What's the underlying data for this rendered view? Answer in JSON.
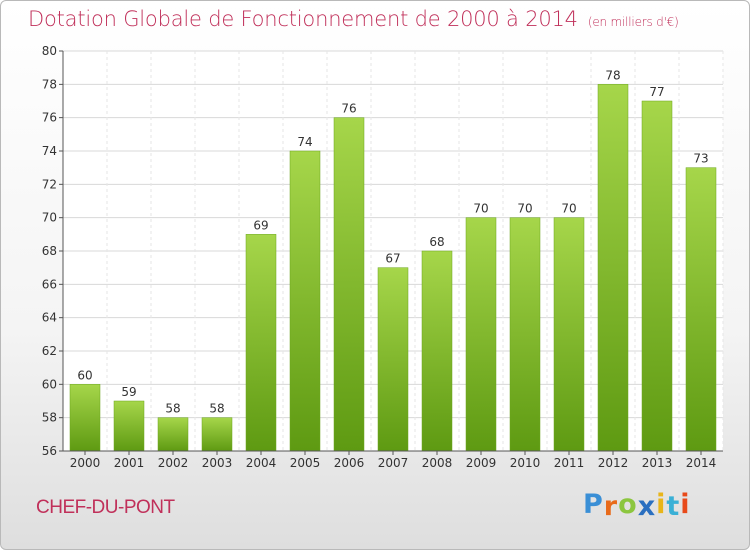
{
  "title": "Dotation Globale de Fonctionnement de 2000 à 2014",
  "subtitle": "(en milliers d'€)",
  "commune": "CHEF-DU-PONT",
  "logo": {
    "letters": [
      "P",
      "r",
      "o",
      "x",
      "i",
      "t",
      "i"
    ],
    "colors": [
      "#3a8fd6",
      "#e86a1a",
      "#8cc63f",
      "#2a6fc0",
      "#e8b51a",
      "#3ab0d6",
      "#e84a1a"
    ]
  },
  "colors": {
    "bar_top": "#a6d64a",
    "bar_bottom": "#5e9a12",
    "title": "#c0305a"
  },
  "chart_data": {
    "type": "bar",
    "title": "Dotation Globale de Fonctionnement de 2000 à 2014",
    "subtitle": "(en milliers d'€)",
    "categories": [
      "2000",
      "2001",
      "2002",
      "2003",
      "2004",
      "2005",
      "2006",
      "2007",
      "2008",
      "2009",
      "2010",
      "2011",
      "2012",
      "2013",
      "2014"
    ],
    "values": [
      60,
      59,
      58,
      58,
      69,
      74,
      76,
      67,
      68,
      70,
      70,
      70,
      78,
      77,
      73
    ],
    "xlabel": "",
    "ylabel": "",
    "ylim": [
      56,
      80
    ],
    "yticks": [
      56,
      58,
      60,
      62,
      64,
      66,
      68,
      70,
      72,
      74,
      76,
      78,
      80
    ],
    "grid": true,
    "legend": "none"
  }
}
